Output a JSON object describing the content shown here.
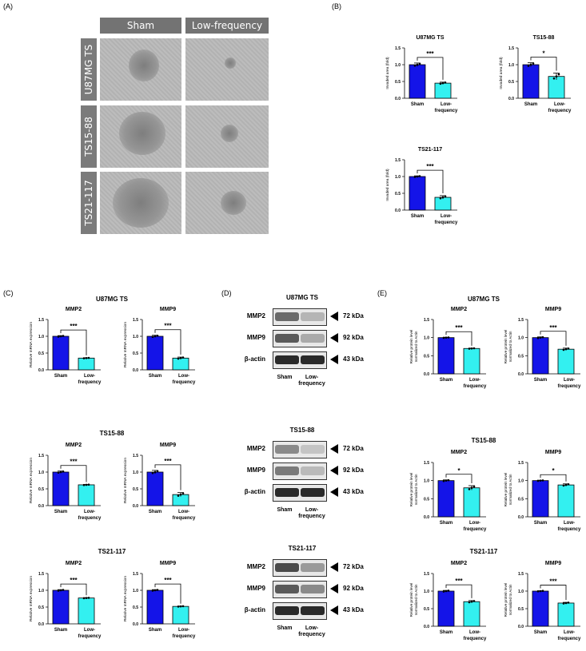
{
  "panels": {
    "A": "(A)",
    "B": "(B)",
    "C": "(C)",
    "D": "(D)",
    "E": "(E)"
  },
  "micrograph": {
    "columns": [
      "Sham",
      "Low-frequency"
    ],
    "rows": [
      "U87MG TS",
      "TS15-88",
      "TS21-117"
    ]
  },
  "colors": {
    "sham": "#1414e8",
    "low": "#33f0f0"
  },
  "western": {
    "groups": [
      {
        "title": "U87MG TS",
        "bands": [
          "MMP2",
          "MMP9",
          "β-actin"
        ],
        "kda": [
          "72 kDa",
          "92 kDa",
          "43 kDa"
        ],
        "xlabels": [
          "Sham",
          "Low-",
          "frequency"
        ]
      },
      {
        "title": "TS15-88",
        "bands": [
          "MMP2",
          "MMP9",
          "β-actin"
        ],
        "kda": [
          "72 kDa",
          "92 kDa",
          "43 kDa"
        ],
        "xlabels": [
          "Sham",
          "Low-",
          "frequency"
        ]
      },
      {
        "title": "TS21-117",
        "bands": [
          "MMP2",
          "MMP9",
          "β-actin"
        ],
        "kda": [
          "72 kDa",
          "92 kDa",
          "43 kDa"
        ],
        "xlabels": [
          "Sham",
          "Low-",
          "frequency"
        ]
      }
    ]
  },
  "section_titles": {
    "C": [
      "U87MG TS",
      "TS15-88",
      "TS21-117"
    ],
    "E": [
      "U87MG TS",
      "TS15-88",
      "TS21-117"
    ]
  },
  "chart_data": [
    {
      "id": "B1",
      "type": "bar",
      "title": "U87MG TS",
      "ylabel": "Invaded area (fold)",
      "categories": [
        "Sham",
        "Low-frequency"
      ],
      "values": [
        1.0,
        0.45
      ],
      "errors": [
        0.05,
        0.03
      ],
      "sig": "***",
      "ylim": [
        0,
        1.5
      ],
      "yticks": [
        0.0,
        0.5,
        1.0,
        1.5
      ]
    },
    {
      "id": "B2",
      "type": "bar",
      "title": "TS15-88",
      "ylabel": "Invaded area (fold)",
      "categories": [
        "Sham",
        "Low-frequency"
      ],
      "values": [
        1.0,
        0.65
      ],
      "errors": [
        0.06,
        0.1
      ],
      "sig": "*",
      "ylim": [
        0,
        1.5
      ],
      "yticks": [
        0.0,
        0.5,
        1.0,
        1.5
      ]
    },
    {
      "id": "B3",
      "type": "bar",
      "title": "TS21-117",
      "ylabel": "Invaded area (fold)",
      "categories": [
        "Sham",
        "Low-frequency"
      ],
      "values": [
        1.0,
        0.38
      ],
      "errors": [
        0.02,
        0.05
      ],
      "sig": "***",
      "ylim": [
        0,
        1.5
      ],
      "yticks": [
        0.0,
        0.5,
        1.0,
        1.5
      ]
    },
    {
      "id": "C1",
      "type": "bar",
      "title": "MMP2",
      "ylabel": "Relative mRNA expression",
      "categories": [
        "Sham",
        "Low-frequency"
      ],
      "values": [
        1.0,
        0.35
      ],
      "errors": [
        0.02,
        0.01
      ],
      "sig": "***",
      "ylim": [
        0,
        1.5
      ],
      "yticks": [
        0.0,
        0.5,
        1.0,
        1.5
      ]
    },
    {
      "id": "C2",
      "type": "bar",
      "title": "MMP9",
      "ylabel": "Relative mRNA expression",
      "categories": [
        "Sham",
        "Low-frequency"
      ],
      "values": [
        1.0,
        0.35
      ],
      "errors": [
        0.03,
        0.03
      ],
      "sig": "***",
      "ylim": [
        0,
        1.5
      ],
      "yticks": [
        0.0,
        0.5,
        1.0,
        1.5
      ]
    },
    {
      "id": "C3",
      "type": "bar",
      "title": "MMP2",
      "ylabel": "Relative mRNA expression",
      "categories": [
        "Sham",
        "Low-frequency"
      ],
      "values": [
        1.0,
        0.62
      ],
      "errors": [
        0.03,
        0.01
      ],
      "sig": "***",
      "ylim": [
        0,
        1.5
      ],
      "yticks": [
        0.0,
        0.5,
        1.0,
        1.5
      ]
    },
    {
      "id": "C4",
      "type": "bar",
      "title": "MMP9",
      "ylabel": "Relative mRNA expression",
      "categories": [
        "Sham",
        "Low-frequency"
      ],
      "values": [
        1.0,
        0.33
      ],
      "errors": [
        0.05,
        0.06
      ],
      "sig": "***",
      "ylim": [
        0,
        1.5
      ],
      "yticks": [
        0.0,
        0.5,
        1.0,
        1.5
      ]
    },
    {
      "id": "C5",
      "type": "bar",
      "title": "MMP2",
      "ylabel": "Relative mRNA expression",
      "categories": [
        "Sham",
        "Low-frequency"
      ],
      "values": [
        1.0,
        0.77
      ],
      "errors": [
        0.02,
        0.01
      ],
      "sig": "***",
      "ylim": [
        0,
        1.5
      ],
      "yticks": [
        0.0,
        0.5,
        1.0,
        1.5
      ]
    },
    {
      "id": "C6",
      "type": "bar",
      "title": "MMP9",
      "ylabel": "Relative mRNA expression",
      "categories": [
        "Sham",
        "Low-frequency"
      ],
      "values": [
        1.0,
        0.52
      ],
      "errors": [
        0.02,
        0.01
      ],
      "sig": "***",
      "ylim": [
        0,
        1.5
      ],
      "yticks": [
        0.0,
        0.5,
        1.0,
        1.5
      ]
    },
    {
      "id": "E1",
      "type": "bar",
      "title": "MMP2",
      "ylabel": "Relative protein level normalized to Actin",
      "categories": [
        "Sham",
        "Low-frequency"
      ],
      "values": [
        1.0,
        0.7
      ],
      "errors": [
        0.01,
        0.01
      ],
      "sig": "***",
      "ylim": [
        0,
        1.5
      ],
      "yticks": [
        0.0,
        0.5,
        1.0,
        1.5
      ]
    },
    {
      "id": "E2",
      "type": "bar",
      "title": "MMP9",
      "ylabel": "Relative protein level normalized to Actin",
      "categories": [
        "Sham",
        "Low-frequency"
      ],
      "values": [
        1.0,
        0.68
      ],
      "errors": [
        0.02,
        0.03
      ],
      "sig": "***",
      "ylim": [
        0,
        1.5
      ],
      "yticks": [
        0.0,
        0.5,
        1.0,
        1.5
      ]
    },
    {
      "id": "E3",
      "type": "bar",
      "title": "MMP2",
      "ylabel": "Relative protein level normalized to Actin",
      "categories": [
        "Sham",
        "Low-frequency"
      ],
      "values": [
        1.0,
        0.8
      ],
      "errors": [
        0.02,
        0.06
      ],
      "sig": "*",
      "ylim": [
        0,
        1.5
      ],
      "yticks": [
        0.0,
        0.5,
        1.0,
        1.5
      ]
    },
    {
      "id": "E4",
      "type": "bar",
      "title": "MMP9",
      "ylabel": "Relative protein level normalized to Actin",
      "categories": [
        "Sham",
        "Low-frequency"
      ],
      "values": [
        1.0,
        0.88
      ],
      "errors": [
        0.01,
        0.03
      ],
      "sig": "*",
      "ylim": [
        0,
        1.5
      ],
      "yticks": [
        0.0,
        0.5,
        1.0,
        1.5
      ]
    },
    {
      "id": "E5",
      "type": "bar",
      "title": "MMP2",
      "ylabel": "Relative protein level normalized to Actin",
      "categories": [
        "Sham",
        "Low-frequency"
      ],
      "values": [
        1.0,
        0.7
      ],
      "errors": [
        0.02,
        0.03
      ],
      "sig": "***",
      "ylim": [
        0,
        1.5
      ],
      "yticks": [
        0.0,
        0.5,
        1.0,
        1.5
      ]
    },
    {
      "id": "E6",
      "type": "bar",
      "title": "MMP9",
      "ylabel": "Relative protein level normalized to Actin",
      "categories": [
        "Sham",
        "Low-frequency"
      ],
      "values": [
        1.0,
        0.66
      ],
      "errors": [
        0.01,
        0.02
      ],
      "sig": "***",
      "ylim": [
        0,
        1.5
      ],
      "yticks": [
        0.0,
        0.5,
        1.0,
        1.5
      ]
    }
  ]
}
